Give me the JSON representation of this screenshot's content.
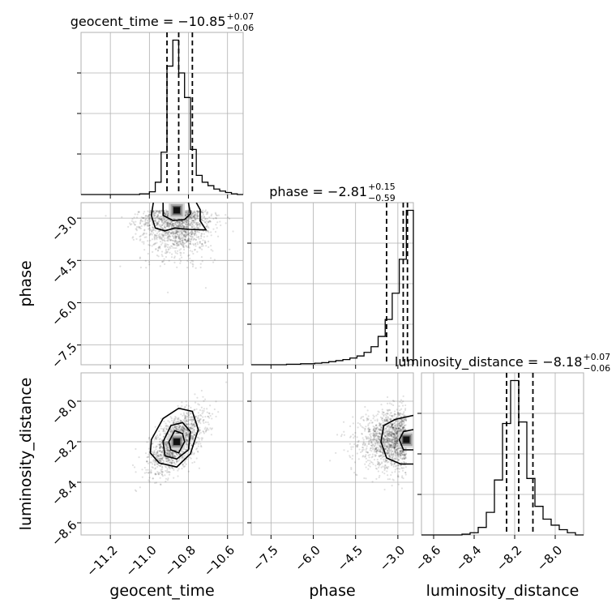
{
  "chart_data": {
    "type": "corner",
    "parameters": [
      {
        "name": "geocent_time",
        "title": {
          "main": "geocent_time = −10.85",
          "sup": "+0.07",
          "sub": "−0.06"
        },
        "median": -10.85,
        "quantiles": [
          -10.91,
          -10.85,
          -10.78
        ],
        "range": [
          -11.35,
          -10.52
        ],
        "ticks": [
          -11.2,
          -11.0,
          -10.8,
          -10.6
        ],
        "tick_labels": [
          "−11.2",
          "−11.0",
          "−10.8",
          "−10.6"
        ],
        "histogram": {
          "edges": [
            -11.35,
            -11.3,
            -11.25,
            -11.2,
            -11.15,
            -11.1,
            -11.05,
            -11.0,
            -10.97,
            -10.94,
            -10.91,
            -10.88,
            -10.85,
            -10.82,
            -10.79,
            -10.76,
            -10.73,
            -10.7,
            -10.67,
            -10.64,
            -10.61,
            -10.58,
            -10.55,
            -10.52
          ],
          "counts": [
            0,
            0,
            0,
            0,
            0,
            0,
            1,
            4,
            18,
            62,
            188,
            226,
            178,
            142,
            66,
            28,
            18,
            13,
            8,
            5,
            3,
            1,
            0
          ]
        }
      },
      {
        "name": "phase",
        "title": {
          "main": "phase = −2.81",
          "sup": "+0.15",
          "sub": "−0.59"
        },
        "median": -2.81,
        "quantiles": [
          -3.4,
          -2.81,
          -2.66
        ],
        "range": [
          -8.2,
          -2.45
        ],
        "ticks": [
          -7.5,
          -6.0,
          -4.5,
          -3.0
        ],
        "tick_labels": [
          "−7.5",
          "−6.0",
          "−4.5",
          "−3.0"
        ],
        "histogram": {
          "edges": [
            -8.2,
            -7.95,
            -7.7,
            -7.45,
            -7.2,
            -6.95,
            -6.7,
            -6.45,
            -6.2,
            -5.95,
            -5.7,
            -5.45,
            -5.2,
            -4.95,
            -4.7,
            -4.45,
            -4.2,
            -3.95,
            -3.7,
            -3.45,
            -3.2,
            -2.95,
            -2.7,
            -2.45
          ],
          "counts": [
            0,
            0,
            0,
            0,
            0,
            1,
            1,
            2,
            2,
            3,
            4,
            6,
            8,
            10,
            13,
            17,
            24,
            35,
            55,
            88,
            139,
            205,
            300
          ]
        }
      },
      {
        "name": "luminosity_distance",
        "title": {
          "main": "luminosity_distance = −8.18",
          "sup": "+0.07",
          "sub": "−0.06"
        },
        "median": -8.18,
        "quantiles": [
          -8.24,
          -8.18,
          -8.11
        ],
        "range": [
          -8.66,
          -7.86
        ],
        "ticks": [
          -8.6,
          -8.4,
          -8.2,
          -8.0
        ],
        "tick_labels": [
          "−8.6",
          "−8.4",
          "−8.2",
          "−8.0"
        ],
        "histogram": {
          "edges": [
            -8.66,
            -8.62,
            -8.58,
            -8.54,
            -8.5,
            -8.46,
            -8.42,
            -8.38,
            -8.34,
            -8.3,
            -8.26,
            -8.22,
            -8.18,
            -8.14,
            -8.1,
            -8.06,
            -8.02,
            -7.98,
            -7.94,
            -7.9,
            -7.86
          ],
          "counts": [
            0,
            0,
            0,
            0,
            0,
            1,
            3,
            10,
            30,
            73,
            148,
            205,
            150,
            75,
            38,
            21,
            13,
            7,
            3,
            0
          ]
        }
      }
    ],
    "pairs": [
      {
        "x": "geocent_time",
        "y": "phase",
        "center": [
          -10.86,
          -2.72
        ],
        "spread": [
          0.09,
          0.75
        ],
        "correlation": 0.18,
        "contours": [
          [
            [
              -10.93,
              -2.45
            ],
            [
              -10.93,
              -2.9
            ],
            [
              -10.88,
              -3.08
            ],
            [
              -10.82,
              -3.05
            ],
            [
              -10.79,
              -2.85
            ],
            [
              -10.8,
              -2.45
            ]
          ],
          [
            [
              -10.98,
              -2.45
            ],
            [
              -10.99,
              -2.9
            ],
            [
              -10.97,
              -3.35
            ],
            [
              -10.92,
              -3.45
            ],
            [
              -10.87,
              -3.35
            ],
            [
              -10.8,
              -3.4
            ],
            [
              -10.71,
              -3.42
            ],
            [
              -10.74,
              -3.1
            ],
            [
              -10.74,
              -2.7
            ],
            [
              -10.76,
              -2.45
            ]
          ]
        ]
      },
      {
        "x": "geocent_time",
        "y": "luminosity_distance",
        "center": [
          -10.86,
          -8.2
        ],
        "spread": [
          0.07,
          0.075
        ],
        "correlation": 0.6,
        "contours": [
          [
            [
              -10.9,
              -8.2
            ],
            [
              -10.87,
              -8.145
            ],
            [
              -10.83,
              -8.16
            ],
            [
              -10.82,
              -8.2
            ],
            [
              -10.85,
              -8.255
            ],
            [
              -10.89,
              -8.24
            ]
          ],
          [
            [
              -10.93,
              -8.2
            ],
            [
              -10.89,
              -8.12
            ],
            [
              -10.83,
              -8.105
            ],
            [
              -10.79,
              -8.15
            ],
            [
              -10.8,
              -8.24
            ],
            [
              -10.86,
              -8.285
            ],
            [
              -10.92,
              -8.27
            ]
          ],
          [
            [
              -10.99,
              -8.19
            ],
            [
              -10.93,
              -8.085
            ],
            [
              -10.85,
              -8.035
            ],
            [
              -10.78,
              -8.05
            ],
            [
              -10.75,
              -8.14
            ],
            [
              -10.79,
              -8.26
            ],
            [
              -10.86,
              -8.325
            ],
            [
              -10.95,
              -8.305
            ],
            [
              -10.995,
              -8.255
            ]
          ]
        ]
      },
      {
        "x": "phase",
        "y": "luminosity_distance",
        "center": [
          -2.7,
          -8.19
        ],
        "spread": [
          0.75,
          0.07
        ],
        "correlation": 0.0,
        "contours": [
          [
            [
              -2.45,
              -8.14
            ],
            [
              -2.8,
              -8.15
            ],
            [
              -2.95,
              -8.19
            ],
            [
              -2.8,
              -8.24
            ],
            [
              -2.45,
              -8.24
            ]
          ],
          [
            [
              -2.45,
              -8.07
            ],
            [
              -3.1,
              -8.09
            ],
            [
              -3.5,
              -8.12
            ],
            [
              -3.6,
              -8.2
            ],
            [
              -3.4,
              -8.28
            ],
            [
              -2.9,
              -8.31
            ],
            [
              -2.45,
              -8.31
            ]
          ]
        ]
      }
    ]
  }
}
